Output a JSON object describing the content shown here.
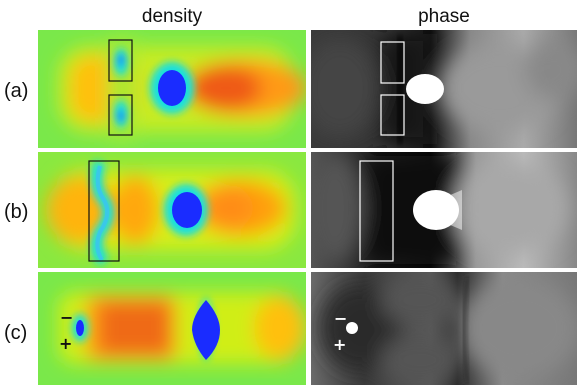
{
  "figure": {
    "columns": [
      {
        "key": "density",
        "title": "density"
      },
      {
        "key": "phase",
        "title": "phase"
      }
    ],
    "rows": [
      {
        "key": "a",
        "label": "(a)",
        "density": {
          "signs": []
        },
        "phase": {
          "signs": []
        }
      },
      {
        "key": "b",
        "label": "(b)",
        "density": {
          "signs": []
        },
        "phase": {
          "signs": []
        }
      },
      {
        "key": "c",
        "label": "(c)",
        "density": {
          "signs": [
            "−",
            "+"
          ]
        },
        "phase": {
          "signs": [
            "−",
            "+"
          ]
        }
      }
    ],
    "colors": {
      "density_scale": [
        "#1a2cff",
        "#19e0e0",
        "#30e840",
        "#d4ee10",
        "#ffb200",
        "#ef5a18"
      ],
      "phase_scale": [
        "#000000",
        "#808080",
        "#ffffff"
      ],
      "box_density": "#111111",
      "box_phase": "#ffffff"
    }
  }
}
